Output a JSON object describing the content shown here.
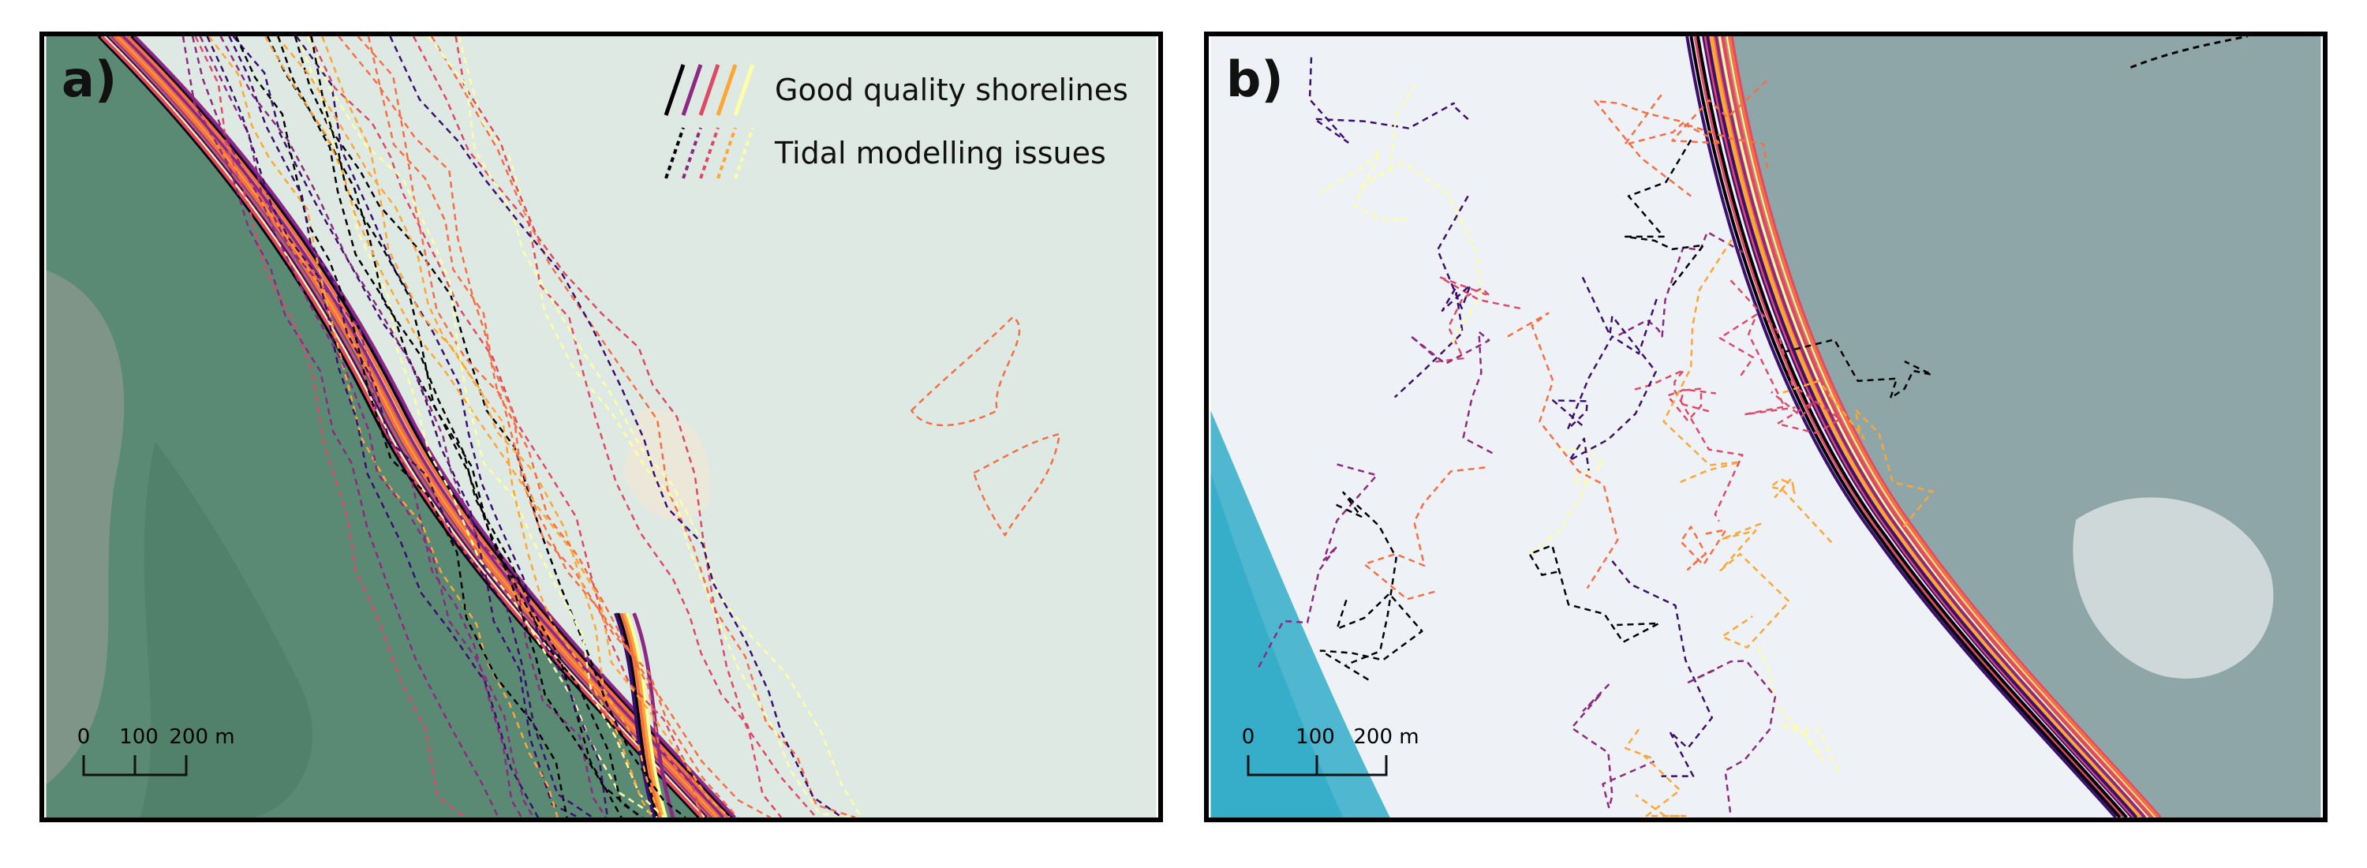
{
  "panels": [
    {
      "id": "a",
      "label": "a)",
      "legend": [
        {
          "text": "Good quality shorelines",
          "style": "solid"
        },
        {
          "text": "Tidal modelling issues",
          "style": "dashed"
        }
      ],
      "scale": {
        "ticks": [
          "0",
          "100",
          "200 m"
        ]
      }
    },
    {
      "id": "b",
      "label": "b)",
      "scale": {
        "ticks": [
          "0",
          "100",
          "200 m"
        ]
      }
    }
  ],
  "colors": {
    "ramp": [
      "#000004",
      "#3b0f70",
      "#8c2981",
      "#de4968",
      "#f66e44",
      "#fca636",
      "#fcffa4"
    ],
    "water_a": "#dfe9e3",
    "mangrove": "#5b8a74",
    "sand_b": "#eef1f6",
    "forest_b": "#8fa6a8",
    "sea_b": "#4fb8d0"
  }
}
